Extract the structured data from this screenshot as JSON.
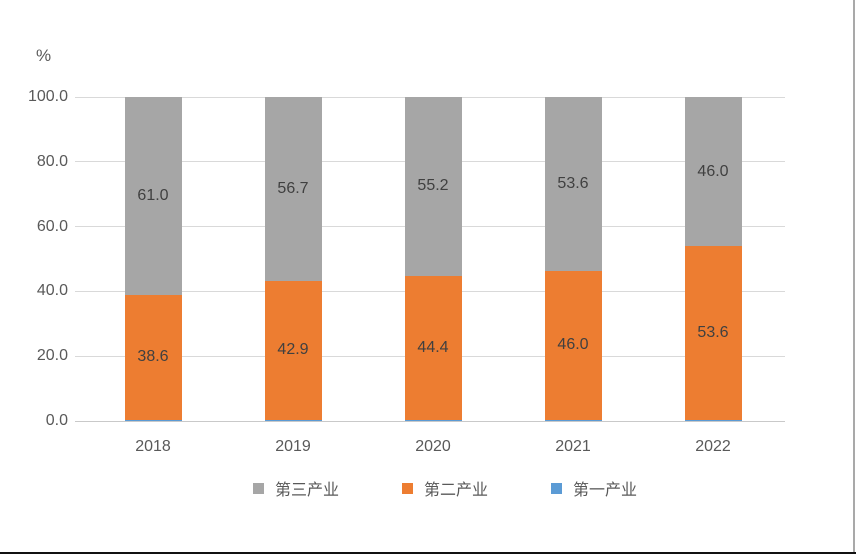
{
  "chart_data": {
    "type": "bar",
    "stacked": true,
    "unit_label": "%",
    "categories": [
      "2018",
      "2019",
      "2020",
      "2021",
      "2022"
    ],
    "series": [
      {
        "name": "第一产业",
        "color": "#5B9BD5",
        "values": [
          0.4,
          0.4,
          0.4,
          0.4,
          0.4
        ],
        "labels": [
          "",
          "",
          "",
          "",
          ""
        ]
      },
      {
        "name": "第二产业",
        "color": "#ED7D31",
        "values": [
          38.6,
          42.9,
          44.4,
          46.0,
          53.6
        ],
        "labels": [
          "38.6",
          "42.9",
          "44.4",
          "46.0",
          "53.6"
        ]
      },
      {
        "name": "第三产业",
        "color": "#A6A6A6",
        "values": [
          61.0,
          56.7,
          55.2,
          53.6,
          46.0
        ],
        "labels": [
          "61.0",
          "56.7",
          "55.2",
          "53.6",
          "46.0"
        ]
      }
    ],
    "y_axis": {
      "min": 0,
      "max": 100,
      "step": 20,
      "tick_labels": [
        "0.0",
        "20.0",
        "40.0",
        "60.0",
        "80.0",
        "100.0"
      ]
    },
    "legend": [
      "第三产业",
      "第二产业",
      "第一产业"
    ],
    "legend_position": "bottom",
    "grid": true,
    "colors": {
      "gridline": "#d9d9d9",
      "tick_text": "#595959",
      "data_label_text": "#404040"
    }
  }
}
